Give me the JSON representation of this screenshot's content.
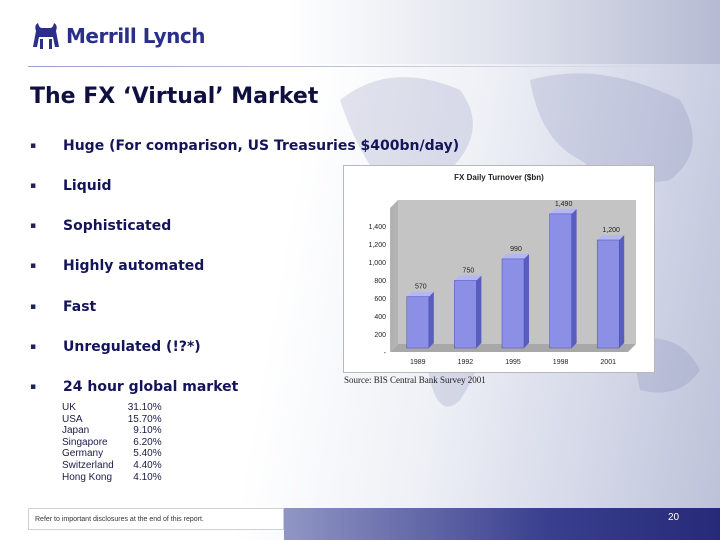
{
  "brand": {
    "name": "Merrill Lynch"
  },
  "slide": {
    "title": "The FX ‘Virtual’ Market"
  },
  "bullets": [
    "Huge (For comparison, US Treasuries $400bn/day)",
    "Liquid",
    "Sophisticated",
    "Highly automated",
    "Fast",
    "Unregulated (!?*)",
    "24 hour global market"
  ],
  "bullet_marker": "▪",
  "market_share": [
    {
      "country": "UK",
      "share": "31.10%"
    },
    {
      "country": "USA",
      "share": "15.70%"
    },
    {
      "country": "Japan",
      "share": "9.10%"
    },
    {
      "country": "Singapore",
      "share": "6.20%"
    },
    {
      "country": "Germany",
      "share": "5.40%"
    },
    {
      "country": "Switzerland",
      "share": "4.40%"
    },
    {
      "country": "Hong Kong",
      "share": "4.10%"
    }
  ],
  "chart_data": {
    "type": "bar",
    "title": "FX Daily Turnover ($bn)",
    "categories": [
      "1989",
      "1992",
      "1995",
      "1998",
      "2001"
    ],
    "values": [
      570,
      750,
      990,
      1490,
      1200
    ],
    "value_labels": [
      "570",
      "750",
      "990",
      "1,490",
      "1,200"
    ],
    "yticks": [
      "-",
      "200",
      "400",
      "600",
      "800",
      "1,000",
      "1,200",
      "1,400"
    ],
    "ylim": [
      0,
      1600
    ],
    "xlabel": "",
    "ylabel": "",
    "grid": false,
    "style": "3d",
    "bar_color": "#8b8fe6",
    "bar_side_color": "#5a5dc0",
    "bar_top_color": "#b4b7f4",
    "backwall_color": "#c4c4c4"
  },
  "source": "Source: BIS Central Bank Survey 2001",
  "footer": {
    "disclosure": "Refer to important disclosures at the end of this report.",
    "page_number": "20"
  },
  "colors": {
    "title": "#101040",
    "logo": "#2b2f8a",
    "footer_bar": "#262a78"
  }
}
